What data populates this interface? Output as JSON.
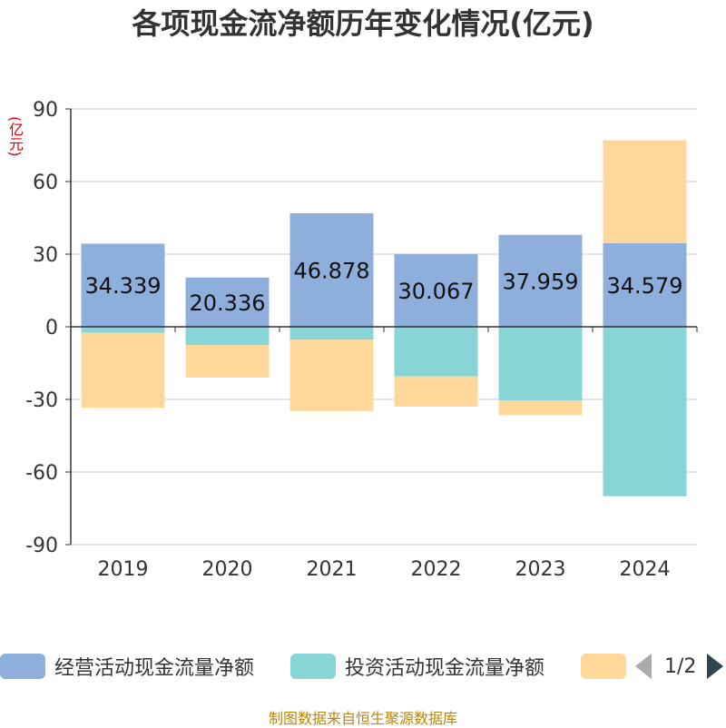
{
  "chart_data": {
    "type": "bar",
    "stacked": true,
    "title": "各项现金流净额历年变化情况(亿元)",
    "unit_label": "(亿元)",
    "categories": [
      "2019",
      "2020",
      "2021",
      "2022",
      "2023",
      "2024"
    ],
    "ylim": [
      -90,
      90
    ],
    "yticks": [
      90,
      60,
      30,
      0,
      -30,
      -60,
      -90
    ],
    "grid": true,
    "series": [
      {
        "name": "经营活动现金流量净额",
        "color": "#8eaedb",
        "values": [
          34.339,
          20.336,
          46.878,
          30.067,
          37.959,
          34.579
        ],
        "labels": [
          "34.339",
          "20.336",
          "46.878",
          "30.067",
          "37.959",
          "34.579"
        ]
      },
      {
        "name": "投资活动现金流量净额",
        "color": "#88d5d8",
        "values": [
          -2.5,
          -7.5,
          -5.3,
          -20.5,
          -30.5,
          -70.0
        ]
      },
      {
        "name": "",
        "color": "#fed89a",
        "values": [
          -31.0,
          -13.5,
          -29.5,
          -12.5,
          -6.0,
          42.5
        ]
      }
    ],
    "legend_position": "bottom"
  },
  "legend": {
    "items": [
      {
        "label": "经营活动现金流量净额",
        "color": "#8eaedb"
      },
      {
        "label": "投资活动现金流量净额",
        "color": "#88d5d8"
      },
      {
        "label": "",
        "color": "#fed89a"
      }
    ],
    "page": "1/2"
  },
  "footer": "制图数据来自恒生聚源数据库"
}
